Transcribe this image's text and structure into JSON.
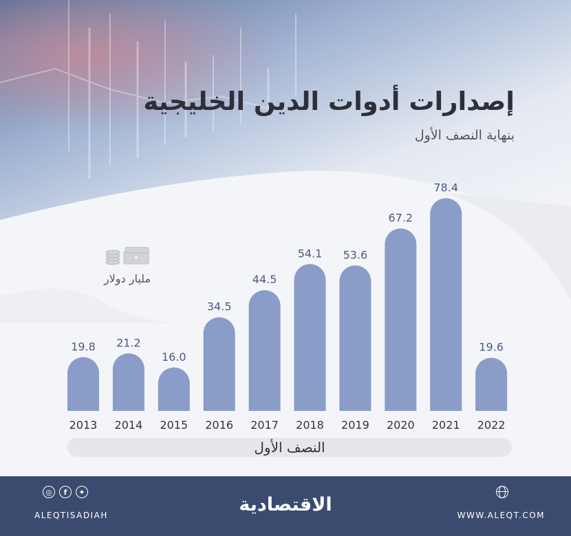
{
  "header": {
    "title": "إصدارات أدوات الدين الخليجية",
    "subtitle": "بنهاية النصف الأول"
  },
  "unit": {
    "label": "مليار دولار",
    "icon": "money-stack-icon"
  },
  "period_label": "النصف الأول",
  "colors": {
    "bar": "#8a9dc9",
    "footer": "#3b4b70",
    "title": "#2f2f3a"
  },
  "chart_data": {
    "type": "bar",
    "title": "إصدارات أدوات الدين الخليجية",
    "subtitle": "بنهاية النصف الأول",
    "ylabel": "مليار دولار",
    "xlabel": "النصف الأول",
    "categories": [
      "2013",
      "2014",
      "2015",
      "2016",
      "2017",
      "2018",
      "2019",
      "2020",
      "2021",
      "2022"
    ],
    "values": [
      19.8,
      21.2,
      16.0,
      34.5,
      44.5,
      54.1,
      53.6,
      67.2,
      78.4,
      19.6
    ],
    "value_labels": [
      "19.8",
      "21.2",
      "16.0",
      "34.5",
      "44.5",
      "54.1",
      "53.6",
      "67.2",
      "78.4",
      "19.6"
    ],
    "ylim": [
      0,
      80
    ],
    "grid": false,
    "legend": "none"
  },
  "footer": {
    "social_icons": [
      "instagram-icon",
      "facebook-icon",
      "twitter-icon"
    ],
    "handle": "ALEQTISADIAH",
    "logo": "الاقتصادية",
    "website_icon": "globe-icon",
    "website": "WWW.ALEQT.COM"
  }
}
